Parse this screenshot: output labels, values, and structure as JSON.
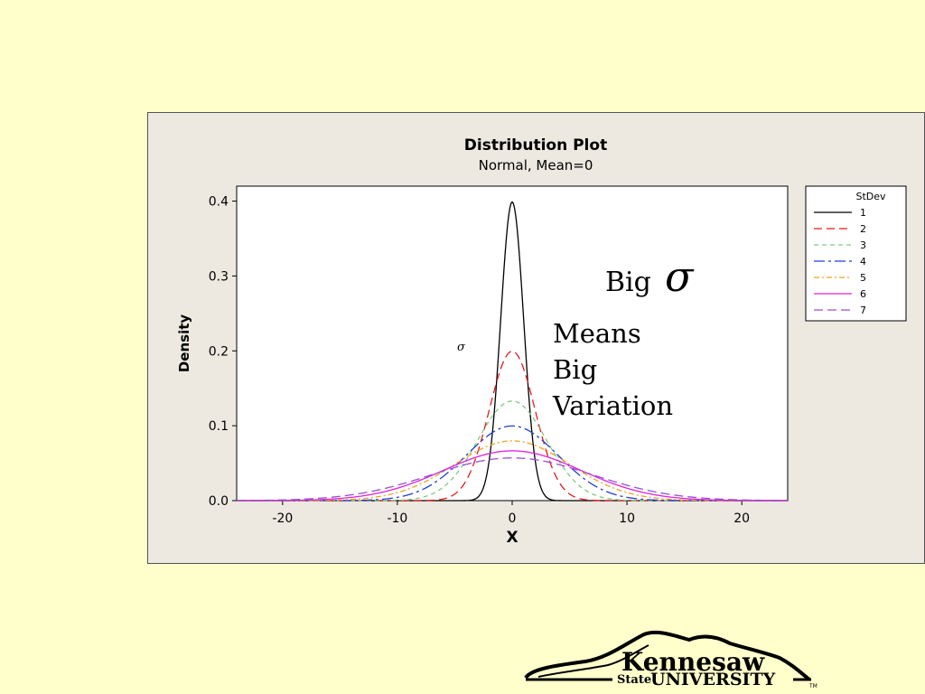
{
  "slide": {
    "background": "#ffffcc",
    "callout": {
      "big_label": "Big",
      "sigma_big": "σ",
      "means": "Means",
      "big2": "Big",
      "variation": "Variation",
      "sigma_small": "σ"
    },
    "logo": {
      "line1": "Kennesaw",
      "state": "State",
      "university": "UNIVERSITY",
      "tm": "TM"
    }
  },
  "chart_data": {
    "type": "line",
    "title": "Distribution Plot",
    "subtitle": "Normal, Mean=0",
    "xlabel": "X",
    "ylabel": "Density",
    "xlim": [
      -24,
      24
    ],
    "ylim": [
      0,
      0.42
    ],
    "xticks": [
      -20,
      -10,
      0,
      10,
      20
    ],
    "yticks": [
      0.0,
      0.1,
      0.2,
      0.3,
      0.4
    ],
    "ytick_labels": [
      "0.0",
      "0.1",
      "0.2",
      "0.3",
      "0.4"
    ],
    "grid": false,
    "legend": {
      "title": "StDev",
      "placement": "right"
    },
    "distribution": "normal",
    "mean": 0,
    "series": [
      {
        "name": "1",
        "stdev": 1,
        "color": "#000000",
        "dash": ""
      },
      {
        "name": "2",
        "stdev": 2,
        "color": "#e31a1c",
        "dash": "9,5"
      },
      {
        "name": "3",
        "stdev": 3,
        "color": "#7fc97f",
        "dash": "5,4"
      },
      {
        "name": "4",
        "stdev": 4,
        "color": "#1f3fd0",
        "dash": "12,4,3,4"
      },
      {
        "name": "5",
        "stdev": 5,
        "color": "#f0a020",
        "dash": "6,3,2,3"
      },
      {
        "name": "6",
        "stdev": 6,
        "color": "#e020e0",
        "dash": ""
      },
      {
        "name": "7",
        "stdev": 7,
        "color": "#9b4fd0",
        "dash": "10,5"
      }
    ]
  }
}
